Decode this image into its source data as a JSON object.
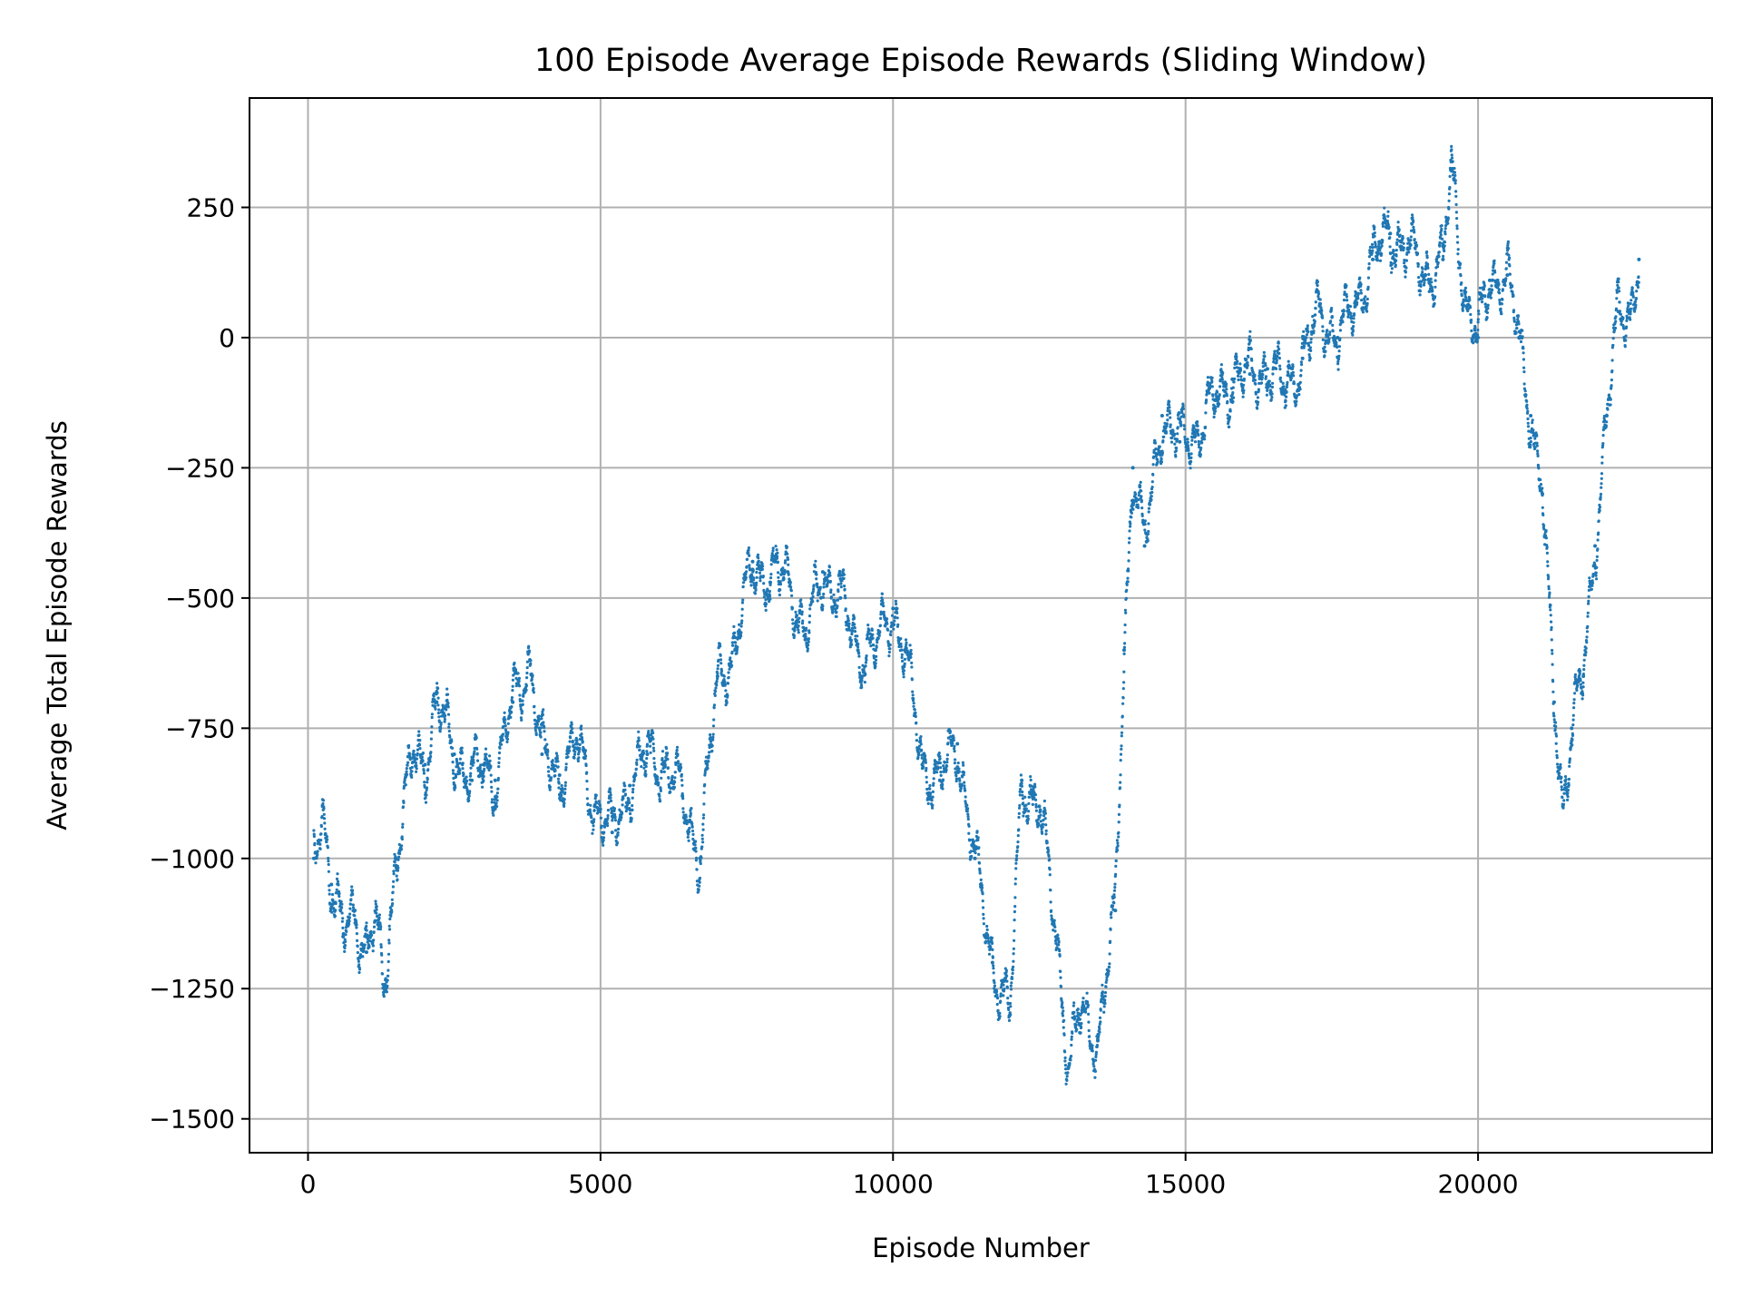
{
  "chart_data": {
    "type": "scatter",
    "title": "100 Episode Average Episode Rewards (Sliding Window)",
    "xlabel": "Episode Number",
    "ylabel": "Average Total Episode Rewards",
    "xlim": [
      -1000,
      24000
    ],
    "ylim": [
      -1565,
      460
    ],
    "x_ticks": [
      0,
      5000,
      10000,
      15000,
      20000
    ],
    "x_tick_labels": [
      "0",
      "5000",
      "10000",
      "15000",
      "20000"
    ],
    "y_ticks": [
      250,
      0,
      -250,
      -500,
      -750,
      -1000,
      -1250,
      -1500
    ],
    "y_tick_labels": [
      "250",
      "0",
      "−250",
      "−500",
      "−750",
      "−1000",
      "−1250",
      "−1500"
    ],
    "grid": true,
    "legend": "none",
    "marker_color": "#1f77b4",
    "series": [
      {
        "x": [
          100,
          250,
          400,
          600,
          800,
          1000,
          1150,
          1300,
          1500,
          1800,
          2000,
          2200,
          2500,
          2800,
          3000,
          3200,
          3500,
          3800,
          4000,
          4300,
          4600,
          4900,
          5200,
          5500,
          5800,
          6100,
          6400,
          6700,
          7000,
          7300,
          7600,
          7900,
          8200,
          8500,
          8800,
          9100,
          9400,
          9700,
          10000,
          10200,
          10500,
          10800,
          11100,
          11400,
          11700,
          12000,
          12200,
          12500,
          12800,
          13000,
          13200,
          13500,
          13800,
          13950,
          14100,
          14300,
          14600,
          14900,
          15200,
          15500,
          15800,
          16100,
          16400,
          16700,
          17000,
          17300,
          17600,
          17900,
          18200,
          18500,
          18800,
          19100,
          19400,
          19550,
          19800,
          20000,
          20200,
          20500,
          20700,
          20900,
          21100,
          21300,
          21450,
          21600,
          21800,
          22000,
          22200,
          22400,
          22600,
          22750
        ],
        "y": [
          -1000,
          -900,
          -1050,
          -1150,
          -1100,
          -1180,
          -1120,
          -1250,
          -1000,
          -800,
          -820,
          -700,
          -800,
          -850,
          -820,
          -850,
          -700,
          -620,
          -800,
          -840,
          -780,
          -900,
          -950,
          -860,
          -800,
          -820,
          -880,
          -1000,
          -650,
          -600,
          -430,
          -470,
          -450,
          -580,
          -450,
          -500,
          -600,
          -600,
          -520,
          -600,
          -820,
          -850,
          -780,
          -1000,
          -1200,
          -1300,
          -850,
          -900,
          -1150,
          -1400,
          -1300,
          -1350,
          -1100,
          -600,
          -250,
          -400,
          -150,
          -200,
          -180,
          -120,
          -80,
          -70,
          -60,
          -100,
          -40,
          50,
          0,
          60,
          150,
          200,
          170,
          120,
          150,
          320,
          60,
          0,
          110,
          120,
          0,
          -150,
          -300,
          -700,
          -900,
          -750,
          -650,
          -400,
          -150,
          50,
          50,
          150
        ]
      }
    ]
  }
}
